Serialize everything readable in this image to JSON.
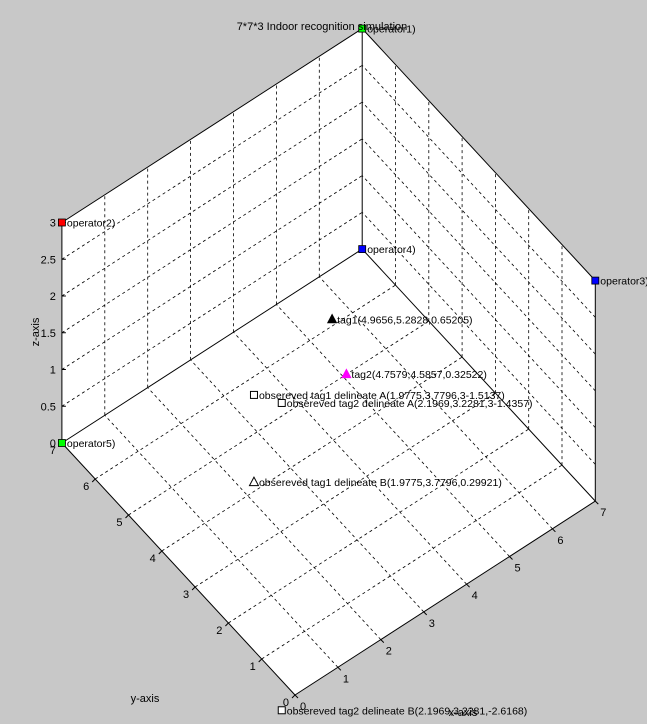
{
  "chart_data": {
    "type": "scatter",
    "title": "7*7*3 Indoor recognition simulation",
    "xlabel": "x-axis",
    "ylabel": "y-axis",
    "zlabel": "z-axis",
    "xlim": [
      0,
      7
    ],
    "ylim": [
      0,
      7
    ],
    "zlim": [
      0,
      3
    ],
    "grid": true,
    "colors": {
      "background": "#c8c8c8",
      "axes": "#ffffff",
      "green": "#00ff00",
      "red": "#ff0000",
      "blue": "#0000ff",
      "magenta": "#ff00ff",
      "black": "#000000"
    },
    "points": [
      {
        "label": "operator1)",
        "x": 7,
        "y": 7,
        "z": 3,
        "marker": "square",
        "color": "green"
      },
      {
        "label": "operator2)",
        "x": 0,
        "y": 7,
        "z": 3,
        "marker": "square",
        "color": "red"
      },
      {
        "label": "operator3)",
        "x": 7,
        "y": 0,
        "z": 3,
        "marker": "square",
        "color": "blue"
      },
      {
        "label": "operator4)",
        "x": 7,
        "y": 7,
        "z": 0,
        "marker": "square",
        "color": "blue"
      },
      {
        "label": "operator5)",
        "x": 0,
        "y": 7,
        "z": 0,
        "marker": "square",
        "color": "green"
      },
      {
        "label": "tag1(4.9656,5.2828,0.65205)",
        "x": 4.9656,
        "y": 5.2828,
        "z": 0.65205,
        "marker": "triangle",
        "color": "black"
      },
      {
        "label": "tag2(4.7579,4.5857,0.32522)",
        "x": 4.7579,
        "y": 4.5857,
        "z": 0.32522,
        "marker": "triangle",
        "color": "magenta"
      },
      {
        "label": "obsereved tag1 delineate A(1.9775,3.7796,3-1.5137)",
        "x": 1.9775,
        "y": 3.7796,
        "z": 1.4863,
        "marker": "open-square",
        "color": "black"
      },
      {
        "label": "obsereved tag2 delineate A(2.1969,3.2281,3-1.4357)",
        "x": 2.1969,
        "y": 3.2281,
        "z": 1.5643,
        "marker": "open-square",
        "color": "black"
      },
      {
        "label": "obsereved tag1 delineate B(1.9775,3.7796,0.29921)",
        "x": 1.9775,
        "y": 3.7796,
        "z": 0.29921,
        "marker": "open-triangle",
        "color": "black"
      },
      {
        "label": "obsereved tag2 delineate B(2.1969,3.2281,-2.6168)",
        "x": 2.1969,
        "y": 3.2281,
        "z": -2.6168,
        "marker": "open-square",
        "color": "black"
      }
    ]
  }
}
